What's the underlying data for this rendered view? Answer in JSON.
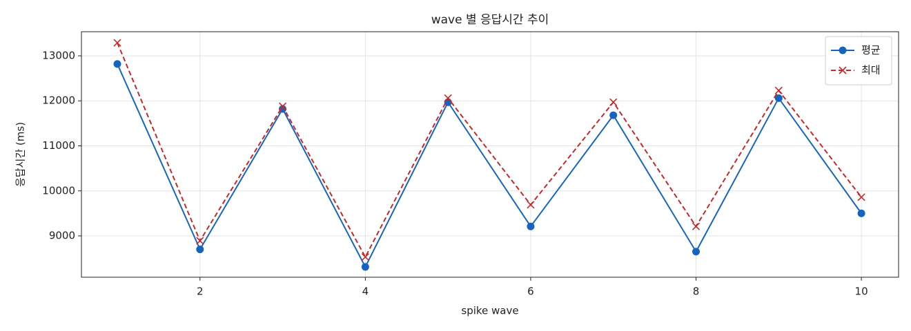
{
  "chart_data": {
    "type": "line",
    "title": "wave 별 응답시간 추이",
    "x_label": "spike wave",
    "y_label": "응답시간 (ms)",
    "x": [
      1,
      2,
      3,
      4,
      5,
      6,
      7,
      8,
      9,
      10
    ],
    "series": [
      {
        "name": "평균",
        "color": "#1565c0",
        "marker": "o",
        "linestyle": "solid",
        "values": [
          12820,
          8700,
          11820,
          8310,
          11970,
          9210,
          11680,
          8650,
          12060,
          9500
        ]
      },
      {
        "name": "최대",
        "color": "#c62828",
        "marker": "x",
        "linestyle": "dashed",
        "values": [
          13290,
          8890,
          11880,
          8530,
          12060,
          9690,
          11970,
          9210,
          12230,
          9860
        ]
      }
    ],
    "xlim": [
      0.566,
      10.45
    ],
    "xticks": [
      2,
      4,
      6,
      8,
      10
    ],
    "ylim": [
      8081,
      13536
    ],
    "yticks": [
      9000,
      10000,
      11000,
      12000,
      13000
    ],
    "grid": true,
    "legend": "upper right"
  }
}
